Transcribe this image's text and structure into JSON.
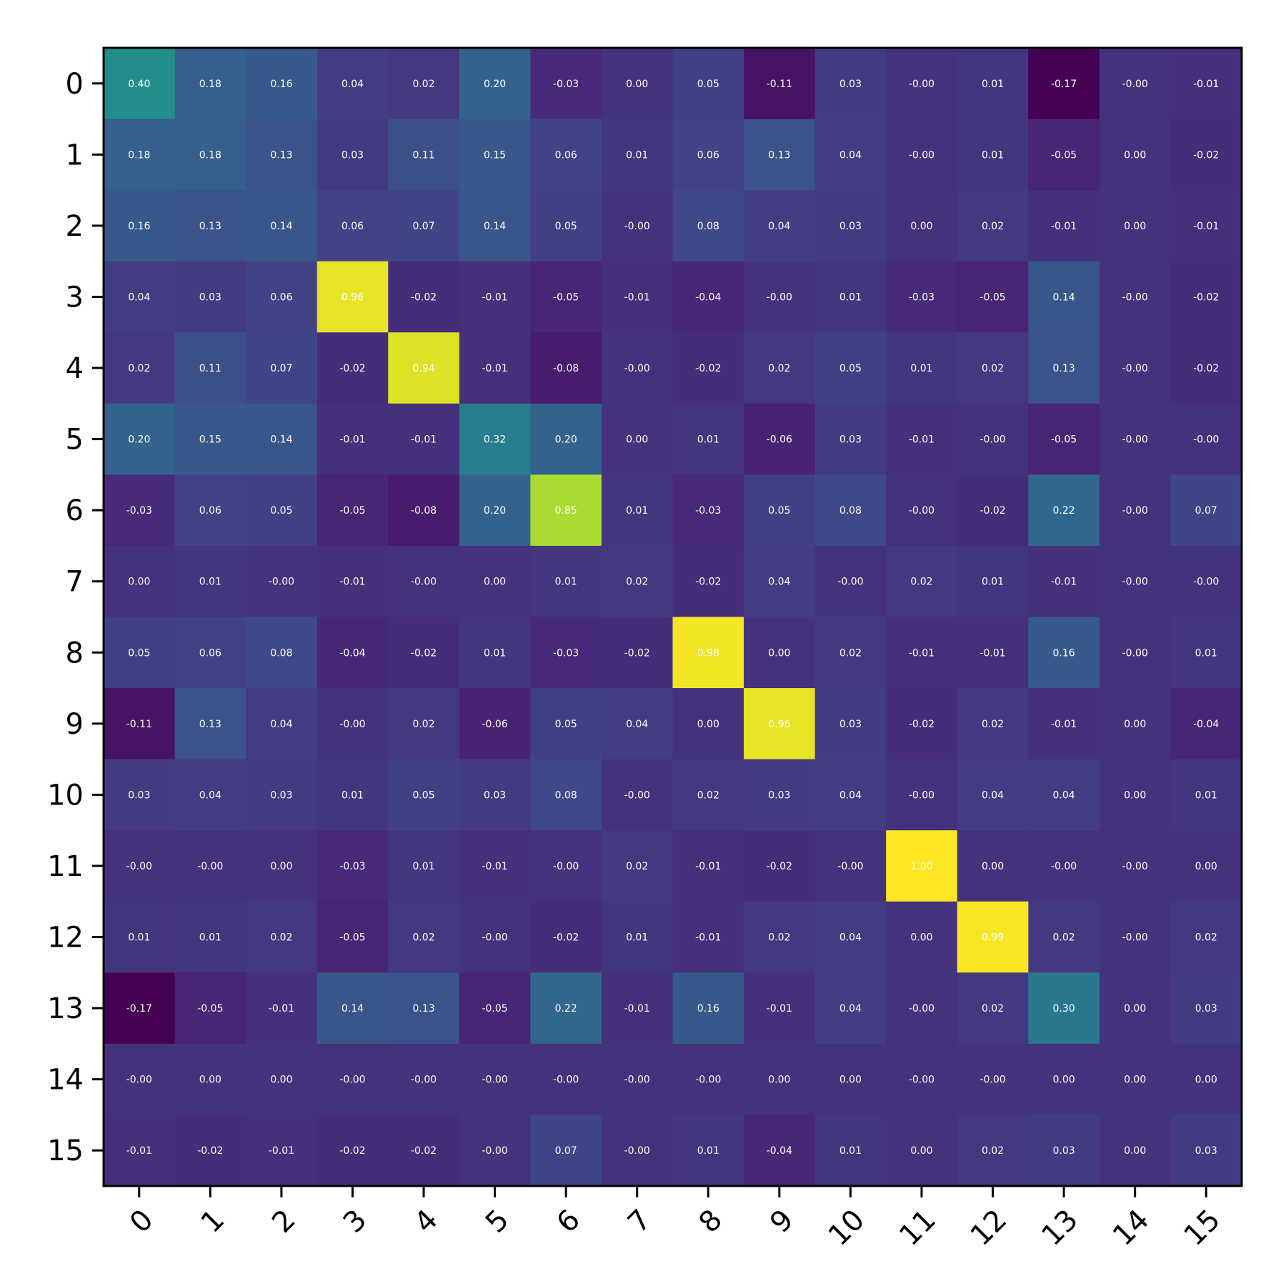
{
  "chart_data": {
    "type": "heatmap",
    "title": "",
    "xlabel": "",
    "ylabel": "",
    "colormap": "viridis",
    "vmin": -0.17,
    "vmax": 1.0,
    "x_tick_labels": [
      "0",
      "1",
      "2",
      "3",
      "4",
      "5",
      "6",
      "7",
      "8",
      "9",
      "10",
      "11",
      "12",
      "13",
      "14",
      "15"
    ],
    "y_tick_labels": [
      "0",
      "1",
      "2",
      "3",
      "4",
      "5",
      "6",
      "7",
      "8",
      "9",
      "10",
      "11",
      "12",
      "13",
      "14",
      "15"
    ],
    "values": [
      [
        0.4,
        0.18,
        0.16,
        0.04,
        0.02,
        0.2,
        -0.03,
        0.0,
        0.05,
        -0.11,
        0.03,
        -0.0,
        0.01,
        -0.17,
        -0.0,
        -0.01
      ],
      [
        0.18,
        0.18,
        0.13,
        0.03,
        0.11,
        0.15,
        0.06,
        0.01,
        0.06,
        0.13,
        0.04,
        -0.0,
        0.01,
        -0.05,
        0.0,
        -0.02
      ],
      [
        0.16,
        0.13,
        0.14,
        0.06,
        0.07,
        0.14,
        0.05,
        -0.0,
        0.08,
        0.04,
        0.03,
        0.0,
        0.02,
        -0.01,
        0.0,
        -0.01
      ],
      [
        0.04,
        0.03,
        0.06,
        0.96,
        -0.02,
        -0.01,
        -0.05,
        -0.01,
        -0.04,
        -0.0,
        0.01,
        -0.03,
        -0.05,
        0.14,
        -0.0,
        -0.02
      ],
      [
        0.02,
        0.11,
        0.07,
        -0.02,
        0.94,
        -0.01,
        -0.08,
        -0.0,
        -0.02,
        0.02,
        0.05,
        0.01,
        0.02,
        0.13,
        -0.0,
        -0.02
      ],
      [
        0.2,
        0.15,
        0.14,
        -0.01,
        -0.01,
        0.32,
        0.2,
        0.0,
        0.01,
        -0.06,
        0.03,
        -0.01,
        -0.0,
        -0.05,
        -0.0,
        -0.0
      ],
      [
        -0.03,
        0.06,
        0.05,
        -0.05,
        -0.08,
        0.2,
        0.85,
        0.01,
        -0.03,
        0.05,
        0.08,
        -0.0,
        -0.02,
        0.22,
        -0.0,
        0.07
      ],
      [
        0.0,
        0.01,
        -0.0,
        -0.01,
        -0.0,
        0.0,
        0.01,
        0.02,
        -0.02,
        0.04,
        -0.0,
        0.02,
        0.01,
        -0.01,
        -0.0,
        -0.0
      ],
      [
        0.05,
        0.06,
        0.08,
        -0.04,
        -0.02,
        0.01,
        -0.03,
        -0.02,
        0.98,
        0.0,
        0.02,
        -0.01,
        -0.01,
        0.16,
        -0.0,
        0.01
      ],
      [
        -0.11,
        0.13,
        0.04,
        -0.0,
        0.02,
        -0.06,
        0.05,
        0.04,
        0.0,
        0.96,
        0.03,
        -0.02,
        0.02,
        -0.01,
        0.0,
        -0.04
      ],
      [
        0.03,
        0.04,
        0.03,
        0.01,
        0.05,
        0.03,
        0.08,
        -0.0,
        0.02,
        0.03,
        0.04,
        -0.0,
        0.04,
        0.04,
        0.0,
        0.01
      ],
      [
        -0.0,
        -0.0,
        0.0,
        -0.03,
        0.01,
        -0.01,
        -0.0,
        0.02,
        -0.01,
        -0.02,
        -0.0,
        1.0,
        0.0,
        -0.0,
        -0.0,
        0.0
      ],
      [
        0.01,
        0.01,
        0.02,
        -0.05,
        0.02,
        -0.0,
        -0.02,
        0.01,
        -0.01,
        0.02,
        0.04,
        0.0,
        0.99,
        0.02,
        -0.0,
        0.02
      ],
      [
        -0.17,
        -0.05,
        -0.01,
        0.14,
        0.13,
        -0.05,
        0.22,
        -0.01,
        0.16,
        -0.01,
        0.04,
        -0.0,
        0.02,
        0.3,
        0.0,
        0.03
      ],
      [
        -0.0,
        0.0,
        0.0,
        -0.0,
        -0.0,
        -0.0,
        -0.0,
        -0.0,
        -0.0,
        0.0,
        0.0,
        -0.0,
        -0.0,
        0.0,
        0.0,
        0.0
      ],
      [
        -0.01,
        -0.02,
        -0.01,
        -0.02,
        -0.02,
        -0.0,
        0.07,
        -0.0,
        0.01,
        -0.04,
        0.01,
        0.0,
        0.02,
        0.03,
        0.0,
        0.03
      ]
    ],
    "cell_labels": [
      [
        "0.40",
        "0.18",
        "0.16",
        "0.04",
        "0.02",
        "0.20",
        "-0.03",
        "0.00",
        "0.05",
        "-0.11",
        "0.03",
        "-0.00",
        "0.01",
        "-0.17",
        "-0.00",
        "-0.01"
      ],
      [
        "0.18",
        "0.18",
        "0.13",
        "0.03",
        "0.11",
        "0.15",
        "0.06",
        "0.01",
        "0.06",
        "0.13",
        "0.04",
        "-0.00",
        "0.01",
        "-0.05",
        "0.00",
        "-0.02"
      ],
      [
        "0.16",
        "0.13",
        "0.14",
        "0.06",
        "0.07",
        "0.14",
        "0.05",
        "-0.00",
        "0.08",
        "0.04",
        "0.03",
        "0.00",
        "0.02",
        "-0.01",
        "0.00",
        "-0.01"
      ],
      [
        "0.04",
        "0.03",
        "0.06",
        "0.96",
        "-0.02",
        "-0.01",
        "-0.05",
        "-0.01",
        "-0.04",
        "-0.00",
        "0.01",
        "-0.03",
        "-0.05",
        "0.14",
        "-0.00",
        "-0.02"
      ],
      [
        "0.02",
        "0.11",
        "0.07",
        "-0.02",
        "0.94",
        "-0.01",
        "-0.08",
        "-0.00",
        "-0.02",
        "0.02",
        "0.05",
        "0.01",
        "0.02",
        "0.13",
        "-0.00",
        "-0.02"
      ],
      [
        "0.20",
        "0.15",
        "0.14",
        "-0.01",
        "-0.01",
        "0.32",
        "0.20",
        "0.00",
        "0.01",
        "-0.06",
        "0.03",
        "-0.01",
        "-0.00",
        "-0.05",
        "-0.00",
        "-0.00"
      ],
      [
        "-0.03",
        "0.06",
        "0.05",
        "-0.05",
        "-0.08",
        "0.20",
        "0.85",
        "0.01",
        "-0.03",
        "0.05",
        "0.08",
        "-0.00",
        "-0.02",
        "0.22",
        "-0.00",
        "0.07"
      ],
      [
        "0.00",
        "0.01",
        "-0.00",
        "-0.01",
        "-0.00",
        "0.00",
        "0.01",
        "0.02",
        "-0.02",
        "0.04",
        "-0.00",
        "0.02",
        "0.01",
        "-0.01",
        "-0.00",
        "-0.00"
      ],
      [
        "0.05",
        "0.06",
        "0.08",
        "-0.04",
        "-0.02",
        "0.01",
        "-0.03",
        "-0.02",
        "0.98",
        "0.00",
        "0.02",
        "-0.01",
        "-0.01",
        "0.16",
        "-0.00",
        "0.01"
      ],
      [
        "-0.11",
        "0.13",
        "0.04",
        "-0.00",
        "0.02",
        "-0.06",
        "0.05",
        "0.04",
        "0.00",
        "0.96",
        "0.03",
        "-0.02",
        "0.02",
        "-0.01",
        "0.00",
        "-0.04"
      ],
      [
        "0.03",
        "0.04",
        "0.03",
        "0.01",
        "0.05",
        "0.03",
        "0.08",
        "-0.00",
        "0.02",
        "0.03",
        "0.04",
        "-0.00",
        "0.04",
        "0.04",
        "0.00",
        "0.01"
      ],
      [
        "-0.00",
        "-0.00",
        "0.00",
        "-0.03",
        "0.01",
        "-0.01",
        "-0.00",
        "0.02",
        "-0.01",
        "-0.02",
        "-0.00",
        "1.00",
        "0.00",
        "-0.00",
        "-0.00",
        "0.00"
      ],
      [
        "0.01",
        "0.01",
        "0.02",
        "-0.05",
        "0.02",
        "-0.00",
        "-0.02",
        "0.01",
        "-0.01",
        "0.02",
        "0.04",
        "0.00",
        "0.99",
        "0.02",
        "-0.00",
        "0.02"
      ],
      [
        "-0.17",
        "-0.05",
        "-0.01",
        "0.14",
        "0.13",
        "-0.05",
        "0.22",
        "-0.01",
        "0.16",
        "-0.01",
        "0.04",
        "-0.00",
        "0.02",
        "0.30",
        "0.00",
        "0.03"
      ],
      [
        "-0.00",
        "0.00",
        "0.00",
        "-0.00",
        "-0.00",
        "-0.00",
        "-0.00",
        "-0.00",
        "-0.00",
        "0.00",
        "0.00",
        "-0.00",
        "-0.00",
        "0.00",
        "0.00",
        "0.00"
      ],
      [
        "-0.01",
        "-0.02",
        "-0.01",
        "-0.02",
        "-0.02",
        "-0.00",
        "0.07",
        "-0.00",
        "0.01",
        "-0.04",
        "0.01",
        "0.00",
        "0.02",
        "0.03",
        "0.00",
        "0.03"
      ]
    ],
    "grid": false,
    "legend": "none",
    "colors": {
      "text": "#ffffff",
      "axes": "#000000",
      "background": "#ffffff"
    }
  }
}
